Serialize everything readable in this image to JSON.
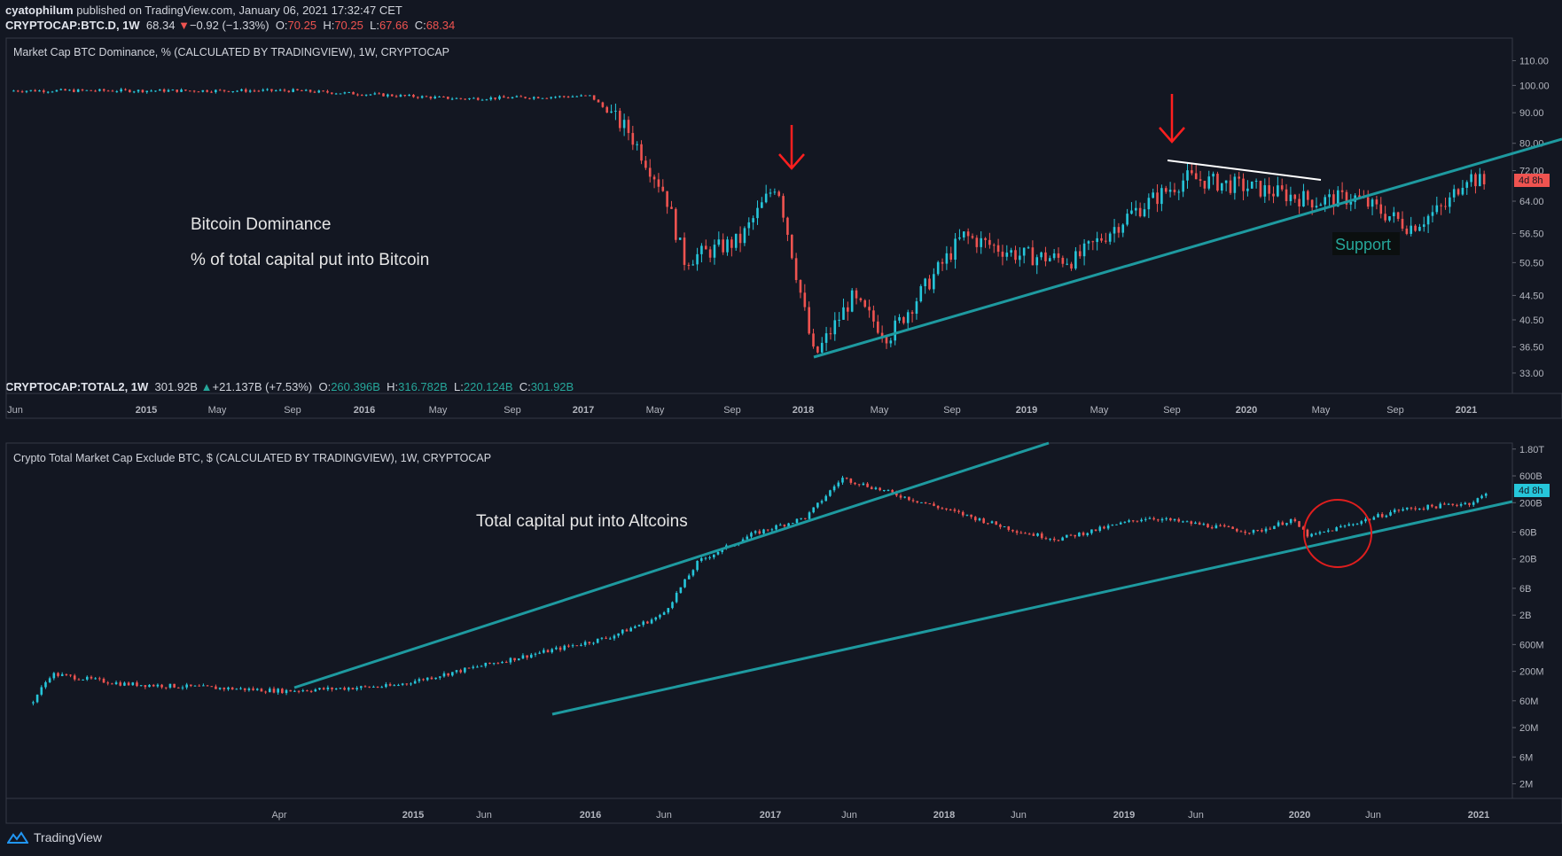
{
  "header": {
    "author": "cyatophilum",
    "published": "published on TradingView.com, January 06, 2021 17:32:47 CET"
  },
  "panel1": {
    "symbol": "CRYPTOCAP:BTC.D, 1W",
    "last": "68.34",
    "change": "−0.92 (−1.33%)",
    "o_label": "O:",
    "o": "70.25",
    "h_label": "H:",
    "h": "70.25",
    "l_label": "L:",
    "l": "67.66",
    "c_label": "C:",
    "c": "68.34",
    "title": "Market Cap BTC Dominance, % (CALCULATED BY TRADINGVIEW), 1W, CRYPTOCAP",
    "annot1": "Bitcoin Dominance",
    "annot2": "% of total capital put into Bitcoin",
    "support": "Support",
    "countdown": "4d 8h"
  },
  "panel2": {
    "symbol": "CRYPTOCAP:TOTAL2, 1W",
    "last": "301.92B",
    "change": "+21.137B (+7.53%)",
    "o_label": "O:",
    "o": "260.396B",
    "h_label": "H:",
    "h": "316.782B",
    "l_label": "L:",
    "l": "220.124B",
    "c_label": "C:",
    "c": "301.92B",
    "title": "Crypto Total Market Cap Exclude BTC, $ (CALCULATED BY TRADINGVIEW), 1W, CRYPTOCAP",
    "annot1": "Total capital put into Altcoins",
    "countdown": "4d 8h"
  },
  "footer": {
    "brand": "TradingView"
  },
  "colors": {
    "bg": "#131722",
    "up": "#26c6da",
    "down": "#ef5350",
    "trend": "#1e9aa0",
    "arrow": "#ff1f1f"
  },
  "chart_data": [
    {
      "type": "candlestick",
      "title": "Market Cap BTC Dominance, % (CALCULATED BY TRADINGVIEW), 1W, CRYPTOCAP",
      "y_scale": "log",
      "y_ticks": [
        "110.00",
        "100.00",
        "90.00",
        "80.00",
        "72.00",
        "64.00",
        "56.50",
        "50.50",
        "44.50",
        "40.50",
        "36.50",
        "33.00"
      ],
      "x_ticks": [
        "Jun",
        "2015",
        "May",
        "Sep",
        "2016",
        "May",
        "Sep",
        "2017",
        "May",
        "Sep",
        "2018",
        "May",
        "Sep",
        "2019",
        "May",
        "Sep",
        "2020",
        "May",
        "Sep",
        "2021"
      ],
      "series": [
        {
          "x": "2014-06",
          "y": 98
        },
        {
          "x": "2015-09",
          "y": 98
        },
        {
          "x": "2016-06",
          "y": 95
        },
        {
          "x": "2017-01",
          "y": 96
        },
        {
          "x": "2017-03",
          "y": 84
        },
        {
          "x": "2017-05",
          "y": 66
        },
        {
          "x": "2017-06",
          "y": 51
        },
        {
          "x": "2017-09",
          "y": 55
        },
        {
          "x": "2017-11",
          "y": 69
        },
        {
          "x": "2018-01",
          "y": 35
        },
        {
          "x": "2018-03",
          "y": 44
        },
        {
          "x": "2018-05",
          "y": 38
        },
        {
          "x": "2018-09",
          "y": 56
        },
        {
          "x": "2018-12",
          "y": 52
        },
        {
          "x": "2019-03",
          "y": 51
        },
        {
          "x": "2019-06",
          "y": 61
        },
        {
          "x": "2019-09",
          "y": 70
        },
        {
          "x": "2020-01",
          "y": 67
        },
        {
          "x": "2020-04",
          "y": 64
        },
        {
          "x": "2020-06",
          "y": 65
        },
        {
          "x": "2020-09",
          "y": 58
        },
        {
          "x": "2020-11",
          "y": 63
        },
        {
          "x": "2020-12",
          "y": 71
        },
        {
          "x": "2021-01",
          "y": 68.34
        }
      ]
    },
    {
      "type": "candlestick",
      "title": "Crypto Total Market Cap Exclude BTC, $ (CALCULATED BY TRADINGVIEW), 1W, CRYPTOCAP",
      "y_scale": "log",
      "y_ticks": [
        "1.80T",
        "600B",
        "200B",
        "60B",
        "20B",
        "6B",
        "2B",
        "600M",
        "200M",
        "60M",
        "20M",
        "6M",
        "2M"
      ],
      "x_ticks": [
        "Apr",
        "2015",
        "Jun",
        "2016",
        "Jun",
        "2017",
        "Jun",
        "2018",
        "Jun",
        "2019",
        "Jun",
        "2020",
        "Jun",
        "2021"
      ],
      "series": [
        {
          "x": "2014-04",
          "y": 0.06
        },
        {
          "x": "2014-05",
          "y": 0.18
        },
        {
          "x": "2014-09",
          "y": 0.12
        },
        {
          "x": "2015-06",
          "y": 0.09
        },
        {
          "x": "2015-12",
          "y": 0.11
        },
        {
          "x": "2016-06",
          "y": 0.3
        },
        {
          "x": "2016-12",
          "y": 0.8
        },
        {
          "x": "2017-03",
          "y": 2
        },
        {
          "x": "2017-05",
          "y": 18
        },
        {
          "x": "2017-08",
          "y": 55
        },
        {
          "x": "2017-11",
          "y": 110
        },
        {
          "x": "2018-01",
          "y": 550
        },
        {
          "x": "2018-06",
          "y": 180
        },
        {
          "x": "2018-11",
          "y": 60
        },
        {
          "x": "2019-01",
          "y": 45
        },
        {
          "x": "2019-06",
          "y": 110
        },
        {
          "x": "2019-12",
          "y": 60
        },
        {
          "x": "2020-02",
          "y": 100
        },
        {
          "x": "2020-03",
          "y": 50
        },
        {
          "x": "2020-08",
          "y": 150
        },
        {
          "x": "2020-12",
          "y": 200
        },
        {
          "x": "2021-01",
          "y": 301.92
        }
      ]
    }
  ]
}
